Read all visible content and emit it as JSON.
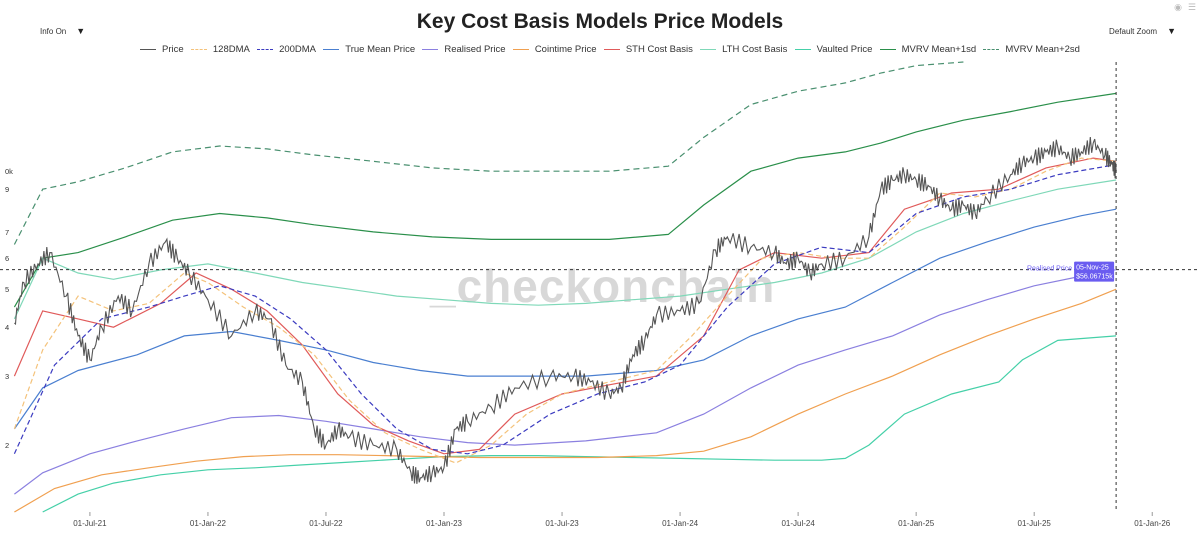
{
  "header": {
    "title": "Key Cost Basis Models Price Models",
    "info_label": "Info On",
    "zoom_label": "Default Zoom"
  },
  "watermark": "_checkonchain",
  "legend": [
    {
      "name": "Price",
      "color": "#555555",
      "dash": false
    },
    {
      "name": "128DMA",
      "color": "#f4c27a",
      "dash": true
    },
    {
      "name": "200DMA",
      "color": "#3b3bc0",
      "dash": true
    },
    {
      "name": "True Mean Price",
      "color": "#4a7fd0",
      "dash": false
    },
    {
      "name": "Realised Price",
      "color": "#8b80e0",
      "dash": false
    },
    {
      "name": "Cointime Price",
      "color": "#f0a050",
      "dash": false
    },
    {
      "name": "STH Cost Basis",
      "color": "#e05a5a",
      "dash": false
    },
    {
      "name": "LTH Cost Basis",
      "color": "#7fd8b8",
      "dash": false
    },
    {
      "name": "Vaulted Price",
      "color": "#45d0a8",
      "dash": false
    },
    {
      "name": "MVRV Mean+1sd",
      "color": "#2a8f4a",
      "dash": false
    },
    {
      "name": "MVRV Mean+2sd",
      "color": "#4a9070",
      "dash": true
    }
  ],
  "tooltip": {
    "series": "Realised Price",
    "date": "05-Nov-25",
    "value": "$56.06715k",
    "color": "#6a5cf0"
  },
  "chart_data": {
    "type": "line",
    "title": "Key Cost Basis Models Price Models",
    "yscale": "log",
    "x_ticks": [
      "01-Jul-21",
      "01-Jan-22",
      "01-Jul-22",
      "01-Jan-23",
      "01-Jul-23",
      "01-Jan-24",
      "01-Jul-24",
      "01-Jan-25",
      "01-Jul-25",
      "01-Jan-26"
    ],
    "x_tick_t": [
      2021.5,
      2022.0,
      2022.5,
      2023.0,
      2023.5,
      2024.0,
      2024.5,
      2025.0,
      2025.5,
      2026.0
    ],
    "x_range": [
      2021.17,
      2026.16
    ],
    "y_ticks": [
      "2",
      "3",
      "4",
      "5",
      "6",
      "7",
      "9",
      "0k"
    ],
    "y_tick_values": [
      20,
      30,
      40,
      50,
      60,
      70,
      90,
      100
    ],
    "y_range": [
      13.5,
      190
    ],
    "crosshair": {
      "t": 2025.847,
      "y": 56.07
    },
    "series": [
      {
        "name": "Price",
        "t": [
          2021.18,
          2021.22,
          2021.28,
          2021.33,
          2021.4,
          2021.45,
          2021.5,
          2021.55,
          2021.62,
          2021.68,
          2021.75,
          2021.82,
          2021.87,
          2021.92,
          2022.0,
          2022.1,
          2022.2,
          2022.26,
          2022.33,
          2022.4,
          2022.45,
          2022.5,
          2022.55,
          2022.6,
          2022.7,
          2022.8,
          2022.86,
          2022.9,
          2022.95,
          2023.0,
          2023.05,
          2023.1,
          2023.2,
          2023.3,
          2023.45,
          2023.55,
          2023.62,
          2023.7,
          2023.75,
          2023.8,
          2023.85,
          2023.9,
          2024.0,
          2024.08,
          2024.15,
          2024.2,
          2024.3,
          2024.4,
          2024.45,
          2024.5,
          2024.55,
          2024.6,
          2024.7,
          2024.8,
          2024.85,
          2024.9,
          2024.95,
          2025.0,
          2025.05,
          2025.1,
          2025.15,
          2025.2,
          2025.25,
          2025.3,
          2025.4,
          2025.45,
          2025.5,
          2025.55,
          2025.6,
          2025.65,
          2025.7,
          2025.75,
          2025.8,
          2025.83,
          2025.847
        ],
        "y": [
          41,
          52,
          58,
          62,
          48,
          38,
          33,
          40,
          48,
          44,
          58,
          66,
          60,
          55,
          47,
          38,
          44,
          42,
          32,
          29,
          22,
          20,
          22,
          21,
          20,
          19.5,
          17,
          16.5,
          17,
          17.5,
          22,
          23,
          25,
          28,
          30,
          30,
          29,
          27,
          28,
          34,
          37,
          43,
          44,
          46,
          63,
          68,
          64,
          62,
          58,
          60,
          55,
          58,
          60,
          68,
          90,
          95,
          98,
          95,
          92,
          85,
          80,
          82,
          78,
          85,
          98,
          105,
          108,
          112,
          115,
          108,
          112,
          118,
          110,
          104,
          100
        ]
      },
      {
        "name": "128DMA",
        "t": [
          2021.18,
          2021.3,
          2021.45,
          2021.6,
          2021.75,
          2021.9,
          2022.0,
          2022.15,
          2022.3,
          2022.45,
          2022.6,
          2022.75,
          2022.9,
          2023.05,
          2023.2,
          2023.35,
          2023.5,
          2023.7,
          2023.9,
          2024.05,
          2024.2,
          2024.35,
          2024.5,
          2024.65,
          2024.8,
          2024.95,
          2025.1,
          2025.25,
          2025.4,
          2025.55,
          2025.7,
          2025.847
        ],
        "y": [
          22,
          35,
          48,
          44,
          46,
          55,
          52,
          45,
          40,
          34,
          26,
          21.5,
          19.5,
          18,
          20,
          24,
          27,
          29,
          31,
          38,
          48,
          60,
          62,
          60,
          60,
          72,
          88,
          86,
          90,
          100,
          108,
          106
        ]
      },
      {
        "name": "200DMA",
        "t": [
          2021.18,
          2021.35,
          2021.55,
          2021.75,
          2021.9,
          2022.05,
          2022.2,
          2022.35,
          2022.5,
          2022.65,
          2022.8,
          2022.95,
          2023.1,
          2023.25,
          2023.45,
          2023.65,
          2023.85,
          2024.0,
          2024.2,
          2024.4,
          2024.6,
          2024.8,
          2025.0,
          2025.2,
          2025.4,
          2025.6,
          2025.847
        ],
        "y": [
          19,
          32,
          42,
          45,
          48,
          51,
          48,
          42,
          35,
          27,
          22,
          19.5,
          19,
          20,
          24,
          27,
          29,
          32,
          45,
          58,
          64,
          62,
          78,
          86,
          90,
          98,
          104
        ]
      },
      {
        "name": "True Mean Price",
        "t": [
          2021.18,
          2021.3,
          2021.45,
          2021.7,
          2021.9,
          2022.1,
          2022.3,
          2022.5,
          2022.7,
          2022.9,
          2023.1,
          2023.3,
          2023.6,
          2023.9,
          2024.1,
          2024.3,
          2024.5,
          2024.7,
          2024.9,
          2025.1,
          2025.3,
          2025.5,
          2025.7,
          2025.847
        ],
        "y": [
          22,
          28,
          31,
          34,
          38,
          39,
          37,
          35,
          32.5,
          31,
          30,
          30,
          30,
          31,
          33,
          38,
          42,
          45,
          52,
          60,
          66,
          72,
          77,
          80
        ]
      },
      {
        "name": "Realised Price",
        "t": [
          2021.18,
          2021.3,
          2021.5,
          2021.7,
          2021.9,
          2022.1,
          2022.3,
          2022.5,
          2022.7,
          2022.9,
          2023.1,
          2023.3,
          2023.6,
          2023.9,
          2024.1,
          2024.3,
          2024.5,
          2024.7,
          2024.9,
          2025.1,
          2025.3,
          2025.5,
          2025.7,
          2025.847
        ],
        "y": [
          15,
          17,
          19,
          20.5,
          22,
          23.5,
          23.8,
          23,
          22,
          21,
          20.3,
          20,
          20.5,
          21.5,
          24,
          28,
          32,
          35,
          38,
          43,
          47,
          51,
          54,
          56.07
        ]
      },
      {
        "name": "Cointime Price",
        "t": [
          2021.18,
          2021.35,
          2021.55,
          2021.75,
          2021.95,
          2022.15,
          2022.35,
          2022.55,
          2022.75,
          2022.95,
          2023.15,
          2023.4,
          2023.65,
          2023.9,
          2024.1,
          2024.3,
          2024.5,
          2024.7,
          2024.9,
          2025.1,
          2025.3,
          2025.5,
          2025.7,
          2025.847
        ],
        "y": [
          13.5,
          15.5,
          16.8,
          17.5,
          18.2,
          18.7,
          18.9,
          18.9,
          18.8,
          18.7,
          18.6,
          18.6,
          18.6,
          18.8,
          19.3,
          21,
          24,
          27,
          30,
          34,
          38,
          42,
          46,
          50
        ]
      },
      {
        "name": "STH Cost Basis",
        "t": [
          2021.18,
          2021.3,
          2021.45,
          2021.6,
          2021.8,
          2021.95,
          2022.1,
          2022.25,
          2022.4,
          2022.55,
          2022.7,
          2022.85,
          2023.0,
          2023.15,
          2023.3,
          2023.5,
          2023.7,
          2023.9,
          2024.1,
          2024.25,
          2024.4,
          2024.6,
          2024.8,
          2024.95,
          2025.15,
          2025.35,
          2025.55,
          2025.75,
          2025.847
        ],
        "y": [
          30,
          44,
          42,
          40,
          46,
          55,
          50,
          44,
          36,
          27,
          22.5,
          20.5,
          19,
          19.5,
          24,
          27,
          28.5,
          30,
          38,
          56,
          62,
          60,
          62,
          80,
          88,
          90,
          102,
          108,
          106
        ]
      },
      {
        "name": "LTH Cost Basis",
        "t": [
          2021.18,
          2021.3,
          2021.45,
          2021.6,
          2021.8,
          2022.0,
          2022.2,
          2022.4,
          2022.6,
          2022.8,
          2023.0,
          2023.2,
          2023.4,
          2023.6,
          2023.8,
          2024.0,
          2024.2,
          2024.4,
          2024.6,
          2024.8,
          2025.0,
          2025.2,
          2025.4,
          2025.6,
          2025.847
        ],
        "y": [
          42,
          60,
          55,
          53,
          56,
          58,
          55,
          52,
          50,
          48,
          47,
          46,
          45.5,
          46,
          47,
          48,
          50,
          52,
          55,
          60,
          70,
          78,
          84,
          90,
          95
        ]
      },
      {
        "name": "Vaulted Price",
        "t": [
          2021.3,
          2021.45,
          2021.6,
          2021.8,
          2022.0,
          2022.2,
          2022.4,
          2022.6,
          2022.8,
          2023.0,
          2023.2,
          2023.4,
          2023.6,
          2023.8,
          2024.0,
          2024.2,
          2024.4,
          2024.6,
          2024.7,
          2024.8,
          2024.95,
          2025.15,
          2025.35,
          2025.45,
          2025.6,
          2025.847
        ],
        "y": [
          13.5,
          15,
          16,
          16.8,
          17.3,
          17.5,
          17.8,
          18.1,
          18.4,
          18.7,
          18.8,
          18.8,
          18.7,
          18.6,
          18.5,
          18.4,
          18.3,
          18.3,
          18.5,
          20,
          24,
          27,
          29,
          33,
          37,
          38
        ]
      },
      {
        "name": "MVRV Mean+1sd",
        "t": [
          2021.18,
          2021.3,
          2021.45,
          2021.65,
          2021.85,
          2022.05,
          2022.25,
          2022.45,
          2022.7,
          2022.95,
          2023.2,
          2023.45,
          2023.7,
          2023.95,
          2024.1,
          2024.3,
          2024.5,
          2024.7,
          2024.85,
          2025.0,
          2025.2,
          2025.4,
          2025.6,
          2025.847
        ],
        "y": [
          45,
          60,
          62,
          68,
          75,
          78,
          76,
          73,
          70,
          68,
          67,
          67,
          67,
          69,
          82,
          100,
          108,
          112,
          118,
          126,
          135,
          142,
          150,
          158
        ]
      },
      {
        "name": "MVRV Mean+2sd",
        "t": [
          2021.18,
          2021.3,
          2021.45,
          2021.65,
          2021.85,
          2022.05,
          2022.25,
          2022.45,
          2022.7,
          2022.95,
          2023.2,
          2023.45,
          2023.7,
          2023.95,
          2024.1,
          2024.3,
          2024.5,
          2024.7,
          2024.85,
          2025.0,
          2025.2
        ],
        "y": [
          65,
          90,
          94,
          102,
          112,
          116,
          114,
          110,
          106,
          102,
          100,
          100,
          100,
          103,
          122,
          148,
          160,
          168,
          178,
          186,
          190
        ]
      }
    ]
  }
}
